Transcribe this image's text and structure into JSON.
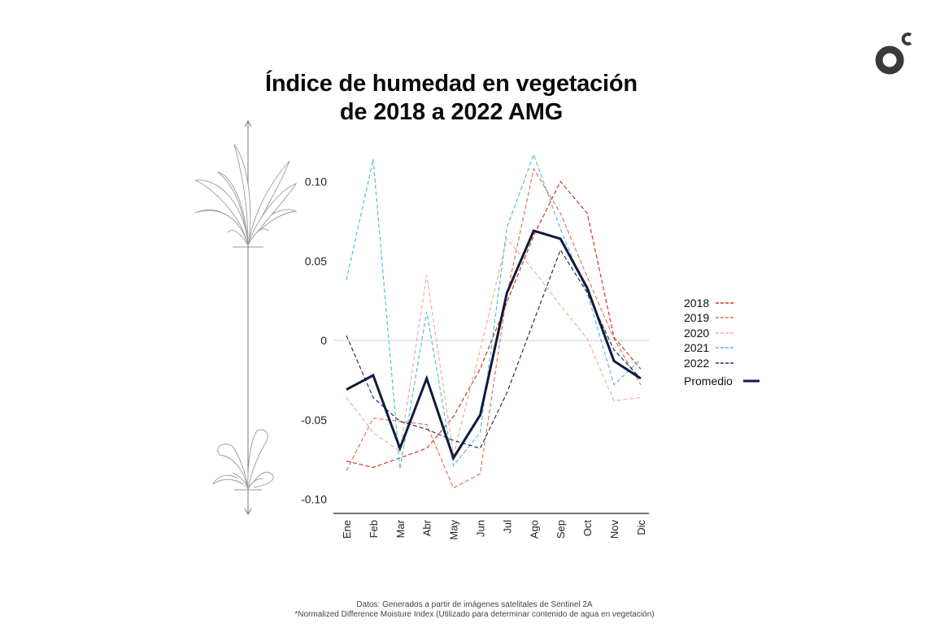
{
  "title": {
    "line1": "Índice de humedad en vegetación",
    "line2": "de 2018 a 2022 AMG"
  },
  "footnotes": {
    "line1": "Datos: Generados a partir de imágenes satelitales de Sentinel 2A",
    "line2": "*Normalized Difference Moisture Index (Utilizado para determinar contenido de agua en vegetación)"
  },
  "icons": {
    "logo": "oc-logo-icon",
    "plant_lush": "lush-plant-icon",
    "plant_dry": "dry-plant-icon",
    "arrow": "double-arrow-icon"
  },
  "chart_data": {
    "type": "line",
    "title": "Índice de humedad en vegetación de 2018 a 2022 AMG",
    "xlabel": "",
    "ylabel": "",
    "ylim": [
      -0.1,
      0.12
    ],
    "yticks": [
      0.1,
      0.05,
      0,
      -0.05,
      -0.1
    ],
    "ytick_labels": [
      "0.10",
      "0.05",
      "0",
      "-0.05",
      "-0.10"
    ],
    "categories": [
      "Ene",
      "Feb",
      "Mar",
      "Abr",
      "May",
      "Jun",
      "Jul",
      "Ago",
      "Sep",
      "Oct",
      "Nov",
      "Dic"
    ],
    "series": [
      {
        "name": "2018",
        "color": "#d4321e",
        "style": "dashed",
        "values": [
          -0.076,
          -0.08,
          -0.074,
          -0.068,
          -0.048,
          -0.018,
          0.024,
          0.066,
          0.1,
          0.08,
          0.002,
          -0.018
        ]
      },
      {
        "name": "2019",
        "color": "#e8705a",
        "style": "dashed",
        "values": [
          -0.082,
          -0.049,
          -0.051,
          -0.053,
          -0.093,
          -0.084,
          0.029,
          0.108,
          0.08,
          0.04,
          0.001,
          -0.028
        ]
      },
      {
        "name": "2020",
        "color": "#f0b09a",
        "style": "dashed",
        "values": [
          -0.036,
          -0.058,
          -0.07,
          0.041,
          -0.072,
          -0.006,
          0.064,
          0.044,
          0.022,
          0.001,
          -0.038,
          -0.036
        ]
      },
      {
        "name": "2021",
        "color": "#4fc3d6",
        "style": "dashed",
        "values": [
          0.038,
          0.114,
          -0.081,
          0.018,
          -0.079,
          -0.058,
          0.071,
          0.117,
          0.07,
          0.03,
          -0.028,
          -0.012
        ]
      },
      {
        "name": "2022",
        "color": "#1f2d6e",
        "style": "dashed",
        "values": [
          0.003,
          -0.036,
          -0.051,
          -0.056,
          -0.063,
          -0.068,
          -0.033,
          0.012,
          0.057,
          0.03,
          -0.006,
          -0.024
        ]
      },
      {
        "name": "Promedio",
        "color": "#0d1b3e",
        "style": "solid",
        "values": [
          -0.031,
          -0.022,
          -0.068,
          -0.024,
          -0.074,
          -0.047,
          0.03,
          0.069,
          0.064,
          0.033,
          -0.013,
          -0.024
        ]
      }
    ],
    "legend_position": "right",
    "grid": false,
    "zero_line": true
  }
}
